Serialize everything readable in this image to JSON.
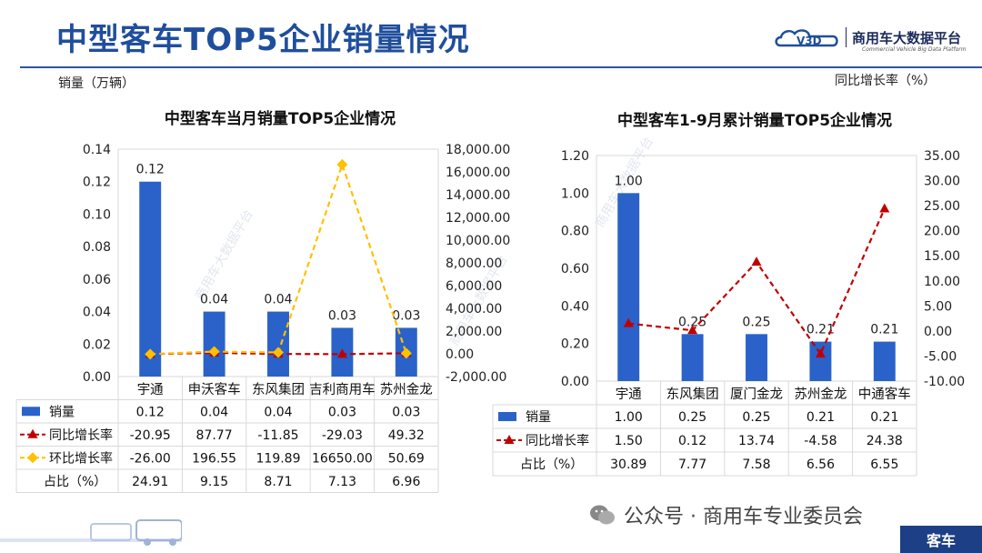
{
  "header": {
    "title": "中型客车TOP5企业销量情况",
    "logo_text": "商用车大数据平台",
    "logo_sub": "Commercial Vehicle Big Data Platform",
    "left_unit": "销量（万辆）",
    "right_unit": "同比增长率（%）"
  },
  "footer": {
    "source": "公众号 · 商用车专业委员会",
    "tag": "客车"
  },
  "chart_data": [
    {
      "type": "bar",
      "title": "中型客车当月销量TOP5企业情况",
      "categories": [
        "宇通",
        "申沃客车",
        "东风集团",
        "吉利商用车",
        "苏州金龙"
      ],
      "series": [
        {
          "name": "销量",
          "type": "bar",
          "axis": "left",
          "values": [
            0.12,
            0.04,
            0.04,
            0.03,
            0.03
          ],
          "labels": [
            "0.12",
            "0.04",
            "0.04",
            "0.03",
            "0.03"
          ],
          "color": "#2a62c9"
        },
        {
          "name": "同比增长率",
          "type": "line",
          "axis": "right",
          "values": [
            -20.95,
            87.77,
            -11.85,
            -29.03,
            49.32
          ],
          "labels": [
            "-20.95",
            "87.77",
            "-11.85",
            "-29.03",
            "49.32"
          ],
          "color": "#c00000"
        },
        {
          "name": "环比增长率",
          "type": "line",
          "axis": "right",
          "values": [
            -26.0,
            196.55,
            119.89,
            16650.0,
            50.69
          ],
          "labels": [
            "-26.00",
            "196.55",
            "119.89",
            "16650.00",
            "50.69"
          ],
          "color": "#ffc000"
        }
      ],
      "table_extra": [
        {
          "name": "占比（%）",
          "labels": [
            "24.91",
            "9.15",
            "8.71",
            "7.13",
            "6.96"
          ]
        }
      ],
      "left_axis": {
        "min": 0,
        "max": 0.14,
        "ticks": [
          "0.00",
          "0.02",
          "0.04",
          "0.06",
          "0.08",
          "0.10",
          "0.12",
          "0.14"
        ]
      },
      "right_axis": {
        "min": -2000,
        "max": 18000,
        "ticks": [
          "-2,000.00",
          "0.00",
          "2,000.00",
          "4,000.00",
          "6,000.00",
          "8,000.00",
          "10,000.00",
          "12,000.00",
          "14,000.00",
          "16,000.00",
          "18,000.00"
        ]
      }
    },
    {
      "type": "bar",
      "title": "中型客车1-9月累计销量TOP5企业情况",
      "categories": [
        "宇通",
        "东风集团",
        "厦门金龙",
        "苏州金龙",
        "中通客车"
      ],
      "series": [
        {
          "name": "销量",
          "type": "bar",
          "axis": "left",
          "values": [
            1.0,
            0.25,
            0.25,
            0.21,
            0.21
          ],
          "labels": [
            "1.00",
            "0.25",
            "0.25",
            "0.21",
            "0.21"
          ],
          "color": "#2a62c9"
        },
        {
          "name": "同比增长率",
          "type": "line",
          "axis": "right",
          "values": [
            1.5,
            0.12,
            13.74,
            -4.58,
            24.38
          ],
          "labels": [
            "1.50",
            "0.12",
            "13.74",
            "-4.58",
            "24.38"
          ],
          "color": "#c00000"
        }
      ],
      "table_extra": [
        {
          "name": "占比（%）",
          "labels": [
            "30.89",
            "7.77",
            "7.58",
            "6.56",
            "6.55"
          ]
        }
      ],
      "left_axis": {
        "min": 0,
        "max": 1.2,
        "ticks": [
          "0.00",
          "0.20",
          "0.40",
          "0.60",
          "0.80",
          "1.00",
          "1.20"
        ]
      },
      "right_axis": {
        "min": -10,
        "max": 35,
        "ticks": [
          "-10.00",
          "-5.00",
          "0.00",
          "5.00",
          "10.00",
          "15.00",
          "20.00",
          "25.00",
          "30.00",
          "35.00"
        ]
      }
    }
  ]
}
